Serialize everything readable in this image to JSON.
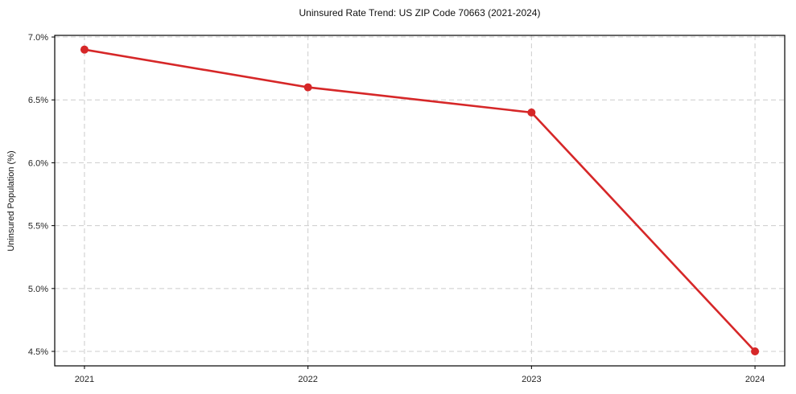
{
  "chart_data": {
    "type": "line",
    "title": "Uninsured Rate Trend: US ZIP Code 70663 (2021-2024)",
    "xlabel": "",
    "ylabel": "Uninsured Population (%)",
    "x": [
      2021,
      2022,
      2023,
      2024
    ],
    "series": [
      {
        "name": "Uninsured rate",
        "values": [
          6.9,
          6.6,
          6.4,
          4.5
        ]
      }
    ],
    "xticks": [
      {
        "value": 2021,
        "label": "2021"
      },
      {
        "value": 2022,
        "label": "2022"
      },
      {
        "value": 2023,
        "label": "2023"
      },
      {
        "value": 2024,
        "label": "2024"
      }
    ],
    "yticks": [
      {
        "value": 4.5,
        "label": "4.5%"
      },
      {
        "value": 5.0,
        "label": "5.0%"
      },
      {
        "value": 5.5,
        "label": "5.5%"
      },
      {
        "value": 6.0,
        "label": "6.0%"
      },
      {
        "value": 6.5,
        "label": "6.5%"
      },
      {
        "value": 7.0,
        "label": "7.0%"
      }
    ],
    "xlim": [
      2020.867,
      2024.133
    ],
    "ylim": [
      4.385,
      7.013
    ],
    "grid": true,
    "grid_style": "dashed",
    "legend_position": "none",
    "colors": {
      "line": "#d62728",
      "marker": "#d62728",
      "grid": "#cccccc",
      "axis": "#000000",
      "tick_text": "#262626",
      "background": "#ffffff"
    }
  }
}
